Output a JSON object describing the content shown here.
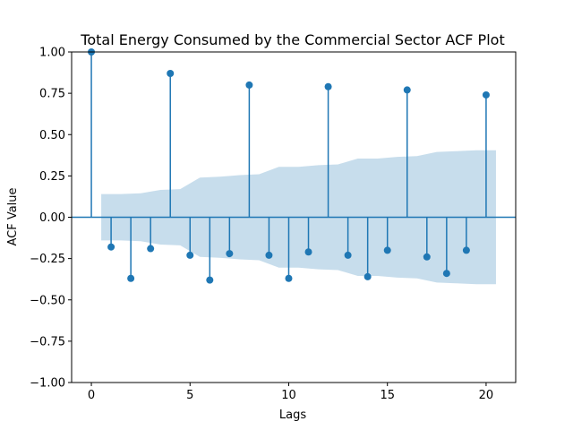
{
  "chart_data": {
    "type": "scatter",
    "title": "Total Energy Consumed by the Commercial Sector ACF Plot",
    "xlabel": "Lags",
    "ylabel": "ACF Value",
    "xlim": [
      -1,
      21.5
    ],
    "ylim": [
      -1.0,
      1.0
    ],
    "x_ticks": [
      0,
      5,
      10,
      15,
      20
    ],
    "x_tick_labels": [
      "0",
      "5",
      "10",
      "15",
      "20"
    ],
    "y_ticks": [
      -1.0,
      -0.75,
      -0.5,
      -0.25,
      0.0,
      0.25,
      0.5,
      0.75,
      1.0
    ],
    "y_tick_labels": [
      "−1.00",
      "−0.75",
      "−0.50",
      "−0.25",
      "0.00",
      "0.25",
      "0.50",
      "0.75",
      "1.00"
    ],
    "grid": false,
    "colors": {
      "stem": "#1f77b4",
      "marker": "#1f77b4",
      "confidence_band": "#1f77b4"
    },
    "series": [
      {
        "x": [
          0,
          1,
          2,
          3,
          4,
          5,
          6,
          7,
          8,
          9,
          10,
          11,
          12,
          13,
          14,
          15,
          16,
          17,
          18,
          19,
          20
        ],
        "values": [
          1.0,
          -0.18,
          -0.37,
          -0.19,
          0.87,
          -0.23,
          -0.38,
          -0.22,
          0.8,
          -0.23,
          -0.37,
          -0.21,
          0.79,
          -0.23,
          -0.36,
          -0.2,
          0.77,
          -0.24,
          -0.34,
          -0.2,
          0.74
        ]
      }
    ],
    "confidence_band": {
      "x": [
        0.5,
        1.5,
        2.5,
        3.5,
        4.5,
        5.5,
        6.5,
        7.5,
        8.5,
        9.5,
        10.5,
        11.5,
        12.5,
        13.5,
        14.5,
        15.5,
        16.5,
        17.5,
        18.5,
        19.5,
        20.5
      ],
      "upper": [
        0.14,
        0.14,
        0.145,
        0.165,
        0.17,
        0.24,
        0.245,
        0.255,
        0.26,
        0.305,
        0.305,
        0.315,
        0.32,
        0.355,
        0.355,
        0.365,
        0.37,
        0.395,
        0.4,
        0.405,
        0.405
      ]
    }
  }
}
